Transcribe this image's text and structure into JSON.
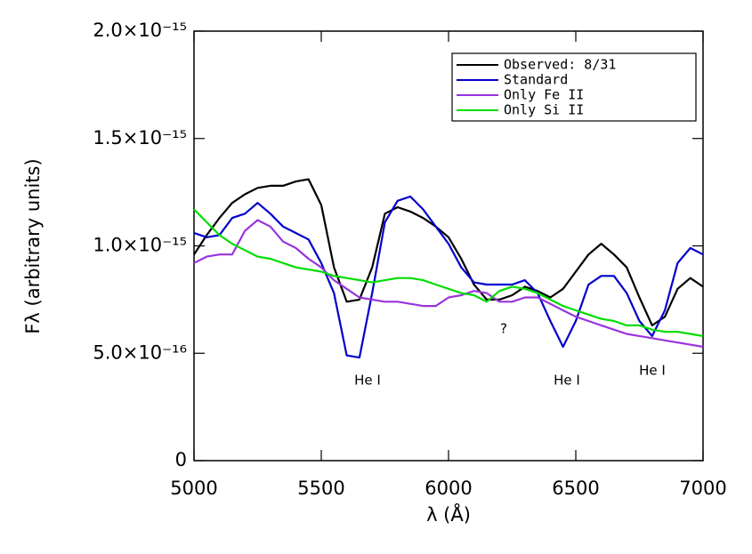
{
  "chart_data": {
    "type": "line",
    "x_label": "λ (Å)",
    "y_label": "Fλ (arbitrary units)",
    "x": [
      5000,
      5050,
      5100,
      5150,
      5200,
      5250,
      5300,
      5350,
      5400,
      5450,
      5500,
      5550,
      5600,
      5650,
      5700,
      5750,
      5800,
      5850,
      5900,
      5950,
      6000,
      6050,
      6100,
      6150,
      6200,
      6250,
      6300,
      6350,
      6400,
      6450,
      6500,
      6550,
      6600,
      6650,
      6700,
      6750,
      6800,
      6850,
      6900,
      6950,
      7000
    ],
    "series": [
      {
        "name": "Observed:  8/31",
        "color": "#000000",
        "values": [
          9.6e-16,
          1.05e-15,
          1.13e-15,
          1.2e-15,
          1.24e-15,
          1.27e-15,
          1.28e-15,
          1.28e-15,
          1.3e-15,
          1.31e-15,
          1.19e-15,
          9e-16,
          7.4e-16,
          7.5e-16,
          9e-16,
          1.15e-15,
          1.18e-15,
          1.16e-15,
          1.13e-15,
          1.09e-15,
          1.04e-15,
          9.4e-16,
          8.2e-16,
          7.5e-16,
          7.5e-16,
          7.7e-16,
          8.1e-16,
          7.9e-16,
          7.6e-16,
          8e-16,
          8.8e-16,
          9.6e-16,
          1.01e-15,
          9.6e-16,
          9e-16,
          7.6e-16,
          6.3e-16,
          6.7e-16,
          8e-16,
          8.5e-16,
          8.1e-16
        ]
      },
      {
        "name": "Standard",
        "color": "#0000cc",
        "values": [
          1.06e-15,
          1.04e-15,
          1.05e-15,
          1.13e-15,
          1.15e-15,
          1.2e-15,
          1.15e-15,
          1.09e-15,
          1.06e-15,
          1.03e-15,
          9.2e-16,
          7.8e-16,
          4.9e-16,
          4.8e-16,
          7.8e-16,
          1.11e-15,
          1.21e-15,
          1.23e-15,
          1.17e-15,
          1.09e-15,
          1.01e-15,
          9e-16,
          8.3e-16,
          8.2e-16,
          8.2e-16,
          8.2e-16,
          8.4e-16,
          7.8e-16,
          6.5e-16,
          5.3e-16,
          6.5e-16,
          8.2e-16,
          8.6e-16,
          8.6e-16,
          7.8e-16,
          6.5e-16,
          5.8e-16,
          7e-16,
          9.2e-16,
          9.9e-16,
          9.6e-16
        ]
      },
      {
        "name": "Only Fe II",
        "color": "#9933dd",
        "values": [
          9.2e-16,
          9.5e-16,
          9.6e-16,
          9.6e-16,
          1.07e-15,
          1.12e-15,
          1.09e-15,
          1.02e-15,
          9.9e-16,
          9.4e-16,
          9e-16,
          8.4e-16,
          8e-16,
          7.6e-16,
          7.5e-16,
          7.4e-16,
          7.4e-16,
          7.3e-16,
          7.2e-16,
          7.2e-16,
          7.6e-16,
          7.7e-16,
          7.9e-16,
          7.8e-16,
          7.4e-16,
          7.4e-16,
          7.6e-16,
          7.6e-16,
          7.3e-16,
          7e-16,
          6.7e-16,
          6.5e-16,
          6.3e-16,
          6.1e-16,
          5.9e-16,
          5.8e-16,
          5.7e-16,
          5.6e-16,
          5.5e-16,
          5.4e-16,
          5.3e-16
        ]
      },
      {
        "name": "Only Si II",
        "color": "#00dd00",
        "values": [
          1.17e-15,
          1.11e-15,
          1.05e-15,
          1.01e-15,
          9.8e-16,
          9.5e-16,
          9.4e-16,
          9.2e-16,
          9e-16,
          8.9e-16,
          8.8e-16,
          8.6e-16,
          8.5e-16,
          8.4e-16,
          8.3e-16,
          8.4e-16,
          8.5e-16,
          8.5e-16,
          8.4e-16,
          8.2e-16,
          8e-16,
          7.8e-16,
          7.7e-16,
          7.4e-16,
          7.9e-16,
          8.1e-16,
          8e-16,
          7.8e-16,
          7.5e-16,
          7.2e-16,
          7e-16,
          6.8e-16,
          6.6e-16,
          6.5e-16,
          6.3e-16,
          6.3e-16,
          6.1e-16,
          6e-16,
          6e-16,
          5.9e-16,
          5.8e-16
        ]
      }
    ],
    "xlim": [
      5000,
      7000
    ],
    "xticks": [
      5000,
      5500,
      6000,
      6500,
      7000
    ],
    "ylim": [
      0,
      2e-15
    ],
    "yticks": [
      0,
      {
        "value": 5e-16,
        "label": "5.0×10⁻¹⁶"
      },
      {
        "value": 1e-15,
        "label": "1.0×10⁻¹⁵"
      },
      {
        "value": 1.5e-15,
        "label": "1.5×10⁻¹⁵"
      },
      {
        "value": 2e-15,
        "label": "2.0×10⁻¹⁵"
      }
    ],
    "legend": "upper right",
    "annotations": [
      "He I",
      "He I",
      "He I",
      "?"
    ]
  }
}
